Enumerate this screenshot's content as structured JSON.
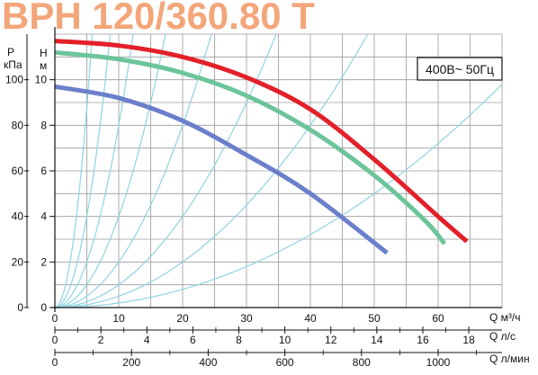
{
  "title": "BPH 120/360.80 T",
  "chart_data": {
    "type": "line",
    "title": "BPH 120/360.80 T",
    "annotation": "400В~ 50Гц",
    "y_axis_left": {
      "label_line1": "P",
      "label_line2": "кПа",
      "ticks": [
        "0",
        "20",
        "40",
        "60",
        "80",
        "100"
      ],
      "range": [
        0,
        120
      ]
    },
    "y_axis_right": {
      "label_line1": "H",
      "label_line2": "м",
      "ticks": [
        "0",
        "2",
        "4",
        "6",
        "8",
        "10"
      ],
      "range": [
        0,
        12
      ]
    },
    "x_axis_main": {
      "label": "Q м³/ч",
      "ticks": [
        "0",
        "10",
        "20",
        "30",
        "40",
        "50",
        "60"
      ],
      "range": [
        0,
        70
      ]
    },
    "x_axis_ls": {
      "label": "Q л/с",
      "ticks": [
        "0",
        "2",
        "4",
        "6",
        "8",
        "10",
        "12",
        "14",
        "16",
        "18"
      ],
      "values": [
        0,
        2,
        4,
        6,
        8,
        10,
        12,
        14,
        16,
        18
      ]
    },
    "x_axis_lmin": {
      "label": "Q л/мин",
      "ticks": [
        "0",
        "200",
        "400",
        "600",
        "800",
        "1000"
      ],
      "values": [
        0,
        200,
        400,
        600,
        800,
        1000
      ]
    },
    "grid": true,
    "colors": {
      "red": "#e3202a",
      "green": "#6cc49a",
      "blue": "#6b7fcb",
      "system": "#8fd3e3",
      "grid": "#9a9a9a",
      "title": "#f3a67a"
    },
    "system_curves_k": [
      0.002,
      0.005,
      0.01,
      0.02,
      0.04,
      0.08,
      0.16,
      0.35
    ],
    "series": [
      {
        "color": "red",
        "x": [
          0,
          10,
          20,
          30,
          40,
          50,
          60,
          64.5
        ],
        "y": [
          11.7,
          11.5,
          11.0,
          10.1,
          8.7,
          6.5,
          4.0,
          2.9
        ]
      },
      {
        "color": "green",
        "x": [
          0,
          10,
          20,
          30,
          40,
          50,
          58,
          61
        ],
        "y": [
          11.2,
          10.9,
          10.3,
          9.3,
          7.8,
          5.8,
          3.8,
          2.8
        ]
      },
      {
        "color": "blue",
        "x": [
          0,
          10,
          20,
          30,
          40,
          52
        ],
        "y": [
          9.7,
          9.2,
          8.2,
          6.7,
          5.0,
          2.4
        ]
      }
    ]
  }
}
